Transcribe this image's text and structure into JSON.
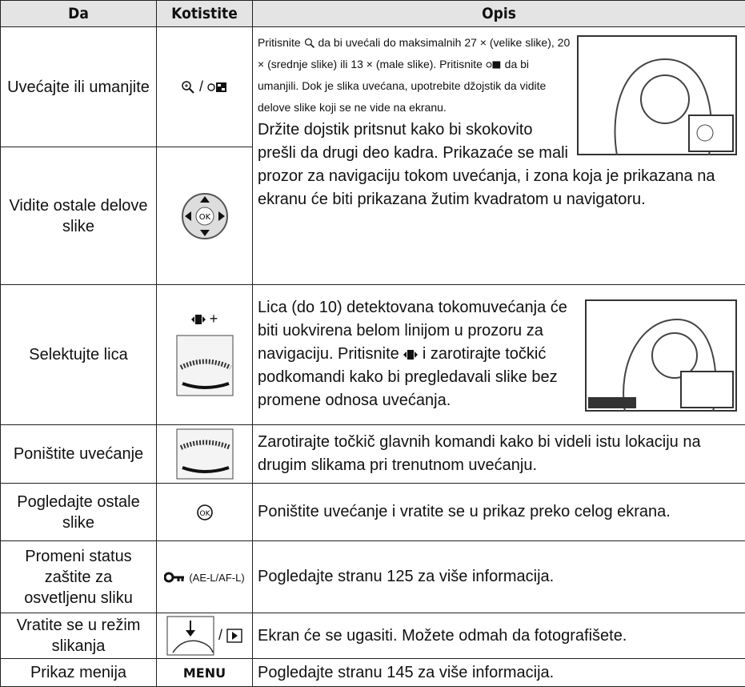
{
  "header": {
    "col1": "Da",
    "col2": "Kotistite",
    "col3": "Opis"
  },
  "rows": [
    {
      "action": "Uvećajte ili umanjite",
      "key": "/",
      "desc": [
        "Pritisnite",
        "da bi uvećali do maksimalnih 27 × (velike slike), 20 × (srednje slike) ili 13 × (male slike).  Pritisnite",
        "da bi umanjili.  Dok je slika uvećana, upotrebite džojstik da vidite delove slike koji se ne vide na ekranu."
      ]
    },
    {
      "action": "Vidite ostale delove slike",
      "desc": [
        "Držite dojstik pritsnut kako bi skokovito prešli da drugi deo kadra. Prikazaće se mali prozor za navigaciju tokom uvećanja, i zona koja je prikazana na ekranu će biti prikazana žutim kvadratom u navigatoru."
      ]
    },
    {
      "action": "Selektujte lica",
      "key": "+",
      "desc": [
        "Lica (do 10) detektovana tokomuvećanja će biti uokvirena belom linijom u prozoru za navigaciju. Pritisnite",
        "i zarotirajte točkić podkomandi kako bi pregledavali slike bez promene odnosa uvećanja."
      ]
    },
    {
      "action": "Poništite uvećanje",
      "desc": [
        "Zarotirajte točkič glavnih komandi kako bi videli istu lokaciju na drugim slikama pri trenutnom uvećanju."
      ]
    },
    {
      "action": "Pogledajte ostale slike",
      "desc": [
        "Poništite uvećanje i vratite se u prikaz preko celog ekrana."
      ]
    },
    {
      "action": "Promeni status zaštite za osvetljenu sliku",
      "key": "(AE-L/AF-L)",
      "desc": [
        "Pogledajte stranu 125 za više informacija."
      ]
    },
    {
      "action": "Vratite se u režim slikanja",
      "key": "/",
      "desc": [
        "Ekran će se ugasiti. Možete odmah da fotografišete."
      ]
    },
    {
      "action": "Prikaz menija",
      "key": "MENU",
      "desc": [
        "Pogledajte stranu 145 za više informacija."
      ]
    }
  ]
}
